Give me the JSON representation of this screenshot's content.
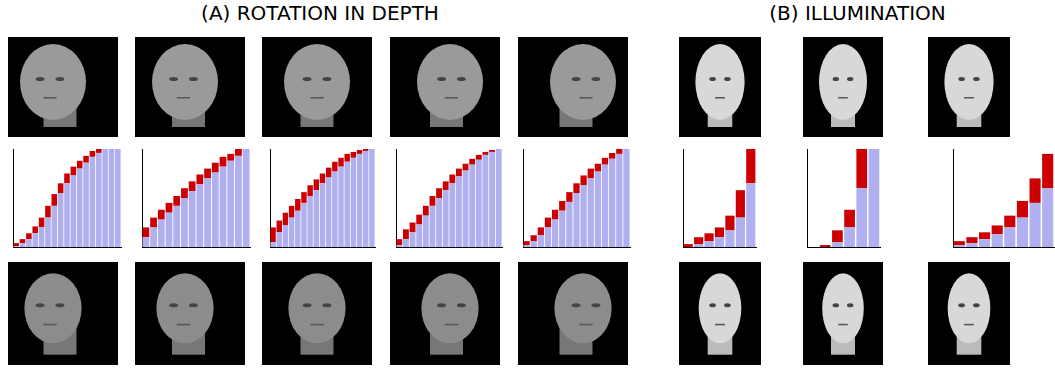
{
  "titles": [
    "(A) ROTATION IN DEPTH",
    "(B) ILLUMINATION"
  ],
  "chart_data": [
    {
      "type": "bar",
      "stacked": true,
      "tick_labels": false,
      "grid": false,
      "ylim": [
        0,
        1
      ],
      "categories": [
        null,
        null,
        null,
        null,
        null,
        null,
        null,
        null,
        null,
        null,
        null,
        null,
        null,
        null,
        null,
        null,
        null
      ],
      "series": [
        {
          "color": "#b0b0f0",
          "values": [
            0.01,
            0.04,
            0.08,
            0.14,
            0.2,
            0.3,
            0.42,
            0.55,
            0.65,
            0.73,
            0.8,
            0.86,
            0.92,
            0.96,
            1,
            1,
            1
          ]
        },
        {
          "color": "#cc0000",
          "values": [
            0.03,
            0.04,
            0.06,
            0.07,
            0.1,
            0.12,
            0.12,
            0.1,
            0.1,
            0.09,
            0.08,
            0.07,
            0.06,
            0.04,
            0,
            0,
            0
          ]
        }
      ]
    },
    {
      "type": "bar",
      "stacked": true,
      "tick_labels": false,
      "grid": false,
      "ylim": [
        0,
        1
      ],
      "categories": [
        null,
        null,
        null,
        null,
        null,
        null,
        null,
        null,
        null,
        null,
        null,
        null,
        null,
        null
      ],
      "series": [
        {
          "color": "#b0b0f0",
          "values": [
            0.1,
            0.2,
            0.28,
            0.35,
            0.42,
            0.5,
            0.57,
            0.64,
            0.7,
            0.76,
            0.82,
            0.88,
            0.93,
            1
          ]
        },
        {
          "color": "#cc0000",
          "values": [
            0.1,
            0.1,
            0.1,
            0.1,
            0.1,
            0.1,
            0.1,
            0.1,
            0.1,
            0.1,
            0.1,
            0.07,
            0.07,
            0
          ]
        }
      ]
    },
    {
      "type": "bar",
      "stacked": true,
      "tick_labels": false,
      "grid": false,
      "ylim": [
        0,
        1
      ],
      "categories": [
        null,
        null,
        null,
        null,
        null,
        null,
        null,
        null,
        null,
        null,
        null,
        null,
        null,
        null,
        null,
        null,
        null
      ],
      "series": [
        {
          "color": "#b0b0f0",
          "values": [
            0.05,
            0.15,
            0.22,
            0.3,
            0.37,
            0.45,
            0.52,
            0.58,
            0.65,
            0.71,
            0.77,
            0.82,
            0.87,
            0.91,
            0.95,
            0.98,
            1
          ]
        },
        {
          "color": "#cc0000",
          "values": [
            0.15,
            0.12,
            0.13,
            0.12,
            0.12,
            0.11,
            0.11,
            0.11,
            0.1,
            0.1,
            0.1,
            0.09,
            0.08,
            0.06,
            0.04,
            0.02,
            0
          ]
        }
      ]
    },
    {
      "type": "bar",
      "stacked": true,
      "tick_labels": false,
      "grid": false,
      "ylim": [
        0,
        1
      ],
      "categories": [
        null,
        null,
        null,
        null,
        null,
        null,
        null,
        null,
        null,
        null,
        null,
        null,
        null,
        null,
        null,
        null
      ],
      "series": [
        {
          "color": "#b0b0f0",
          "values": [
            0.02,
            0.08,
            0.15,
            0.23,
            0.32,
            0.42,
            0.5,
            0.58,
            0.65,
            0.72,
            0.78,
            0.84,
            0.89,
            0.94,
            0.97,
            1
          ]
        },
        {
          "color": "#cc0000",
          "values": [
            0.06,
            0.1,
            0.1,
            0.1,
            0.1,
            0.1,
            0.1,
            0.09,
            0.09,
            0.08,
            0.07,
            0.06,
            0.05,
            0.03,
            0.02,
            0
          ]
        }
      ]
    },
    {
      "type": "bar",
      "stacked": true,
      "tick_labels": false,
      "grid": false,
      "ylim": [
        0,
        1
      ],
      "categories": [
        null,
        null,
        null,
        null,
        null,
        null,
        null,
        null,
        null,
        null,
        null,
        null,
        null,
        null,
        null
      ],
      "series": [
        {
          "color": "#b0b0f0",
          "values": [
            0.02,
            0.06,
            0.12,
            0.2,
            0.28,
            0.37,
            0.46,
            0.55,
            0.63,
            0.7,
            0.77,
            0.84,
            0.9,
            0.95,
            1
          ]
        },
        {
          "color": "#cc0000",
          "values": [
            0.04,
            0.06,
            0.08,
            0.1,
            0.1,
            0.1,
            0.1,
            0.1,
            0.1,
            0.1,
            0.08,
            0.07,
            0.06,
            0.05,
            0
          ]
        }
      ]
    },
    {
      "type": "bar",
      "stacked": true,
      "tick_labels": false,
      "grid": false,
      "ylim": [
        0,
        1
      ],
      "categories": [
        null,
        null,
        null,
        null,
        null,
        null,
        null
      ],
      "series": [
        {
          "color": "#b0b0f0",
          "values": [
            0,
            0.03,
            0.06,
            0.1,
            0.17,
            0.3,
            0.65
          ]
        },
        {
          "color": "#cc0000",
          "values": [
            0.03,
            0.07,
            0.08,
            0.1,
            0.15,
            0.28,
            0.35
          ]
        }
      ]
    },
    {
      "type": "bar",
      "stacked": true,
      "tick_labels": false,
      "grid": false,
      "ylim": [
        0,
        1
      ],
      "categories": [
        null,
        null,
        null,
        null,
        null,
        null
      ],
      "series": [
        {
          "color": "#b0b0f0",
          "values": [
            0,
            0,
            0.05,
            0.2,
            0.6,
            1
          ]
        },
        {
          "color": "#cc0000",
          "values": [
            0,
            0.02,
            0.12,
            0.18,
            0.4,
            0
          ]
        }
      ]
    },
    {
      "type": "bar",
      "stacked": true,
      "tick_labels": false,
      "grid": false,
      "ylim": [
        0,
        1
      ],
      "categories": [
        null,
        null,
        null,
        null,
        null,
        null,
        null,
        null
      ],
      "series": [
        {
          "color": "#b0b0f0",
          "values": [
            0.02,
            0.04,
            0.08,
            0.13,
            0.2,
            0.3,
            0.45,
            0.6
          ]
        },
        {
          "color": "#cc0000",
          "values": [
            0.04,
            0.06,
            0.07,
            0.09,
            0.12,
            0.17,
            0.25,
            0.35
          ]
        }
      ]
    }
  ]
}
